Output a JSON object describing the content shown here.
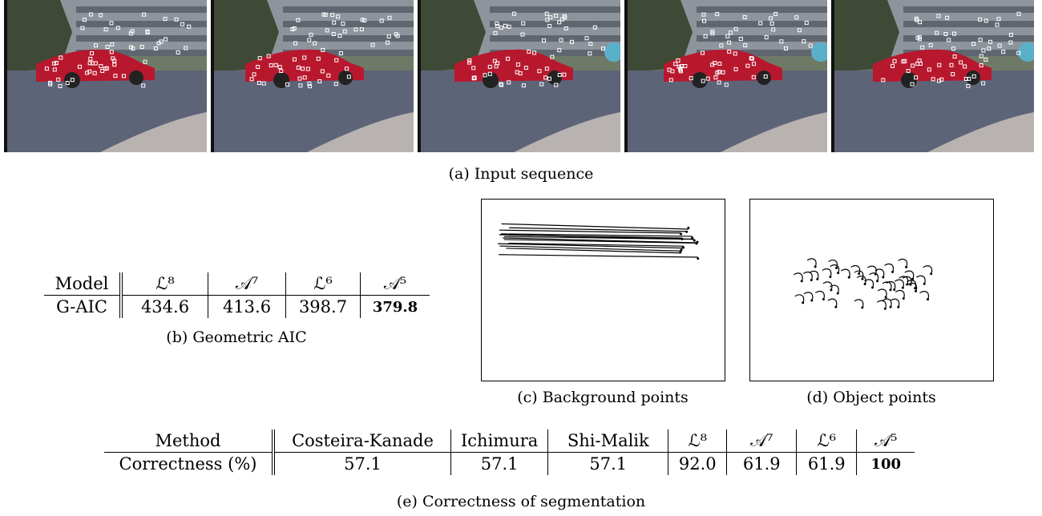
{
  "input_sequence": {
    "caption": "(a) Input sequence"
  },
  "aic_table": {
    "header": [
      "Model",
      "ℒ⁸",
      "𝒜⁷",
      "ℒ⁶",
      "𝒜⁵"
    ],
    "rows": [
      [
        "G-AIC",
        "434.6",
        "413.6",
        "398.7",
        "379.8"
      ]
    ],
    "caption": "(b) Geometric AIC"
  },
  "background_points": {
    "caption": "(c) Background points"
  },
  "object_points": {
    "caption": "(d) Object points"
  },
  "segmentation_table": {
    "header": [
      "Method",
      "Costeira-Kanade",
      "Ichimura",
      "Shi-Malik",
      "ℒ⁸",
      "𝒜⁷",
      "ℒ⁶",
      "𝒜⁵"
    ],
    "rows": [
      [
        "Correctness (%)",
        "57.1",
        "57.1",
        "57.1",
        "92.0",
        "61.9",
        "61.9",
        "100"
      ]
    ],
    "caption": "(e) Correctness of segmentation"
  }
}
